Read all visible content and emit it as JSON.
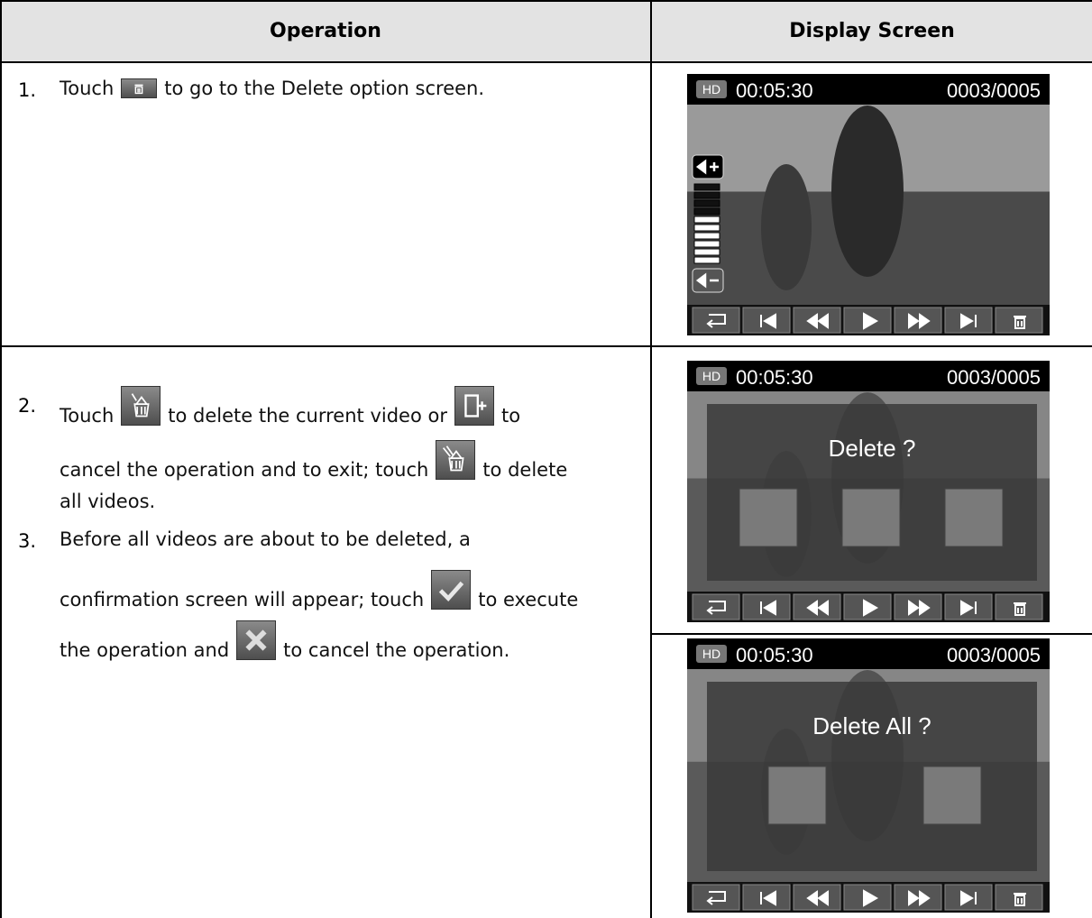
{
  "table": {
    "headers": [
      "Operation",
      "Display Screen"
    ],
    "steps": [
      {
        "number": "1.",
        "parts": [
          "Touch",
          "to go to the Delete option screen."
        ]
      },
      {
        "number": "2.",
        "parts": [
          "Touch",
          "to delete the current video or",
          "to",
          "cancel the operation and to exit; touch",
          "to delete",
          "all videos."
        ]
      },
      {
        "number": "3.",
        "parts": [
          "Before all videos are about to be deleted, a",
          "confirmation screen will appear; touch",
          "to execute",
          "the operation and",
          "to cancel the operation."
        ]
      }
    ],
    "screens": [
      {
        "badge": "HD",
        "time": "00:05:30",
        "counter": "0003/0005"
      },
      {
        "badge": "HD",
        "time": "00:05:30",
        "counter": "0003/0005",
        "dialog": "Delete ?"
      },
      {
        "badge": "HD",
        "time": "00:05:30",
        "counter": "0003/0005",
        "dialog": "Delete All ?"
      }
    ]
  }
}
